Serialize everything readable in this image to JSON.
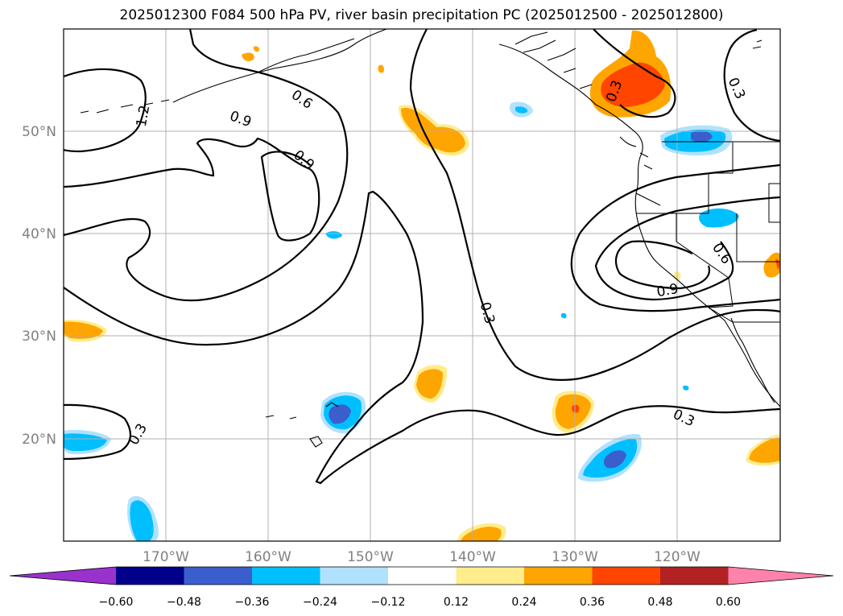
{
  "title": "2025012300 F084 500 hPa PV, river basin precipitation PC (2025012500 - 2025012800)",
  "lat_labels": [
    "50°N",
    "40°N",
    "30°N",
    "20°N"
  ],
  "lon_labels": [
    "170°W",
    "160°W",
    "150°W",
    "140°W",
    "130°W",
    "120°W"
  ],
  "contour_labels": [
    "1.2",
    "0.9",
    "0.6",
    "0.9",
    "0.3",
    "0.3",
    "0.6",
    "0.9",
    "0.3",
    "0.3",
    "0.3"
  ],
  "colorbar": {
    "ticks": [
      "−0.60",
      "−0.48",
      "−0.36",
      "−0.24",
      "−0.12",
      "0.12",
      "0.24",
      "0.36",
      "0.48",
      "0.60"
    ],
    "colors": [
      "#9932cc",
      "#00008b",
      "#3a5fcd",
      "#00bfff",
      "#b0e2ff",
      "#ffffff",
      "#ffec8b",
      "#ffa500",
      "#ff4500",
      "#b22222",
      "#ff82ab"
    ]
  }
}
